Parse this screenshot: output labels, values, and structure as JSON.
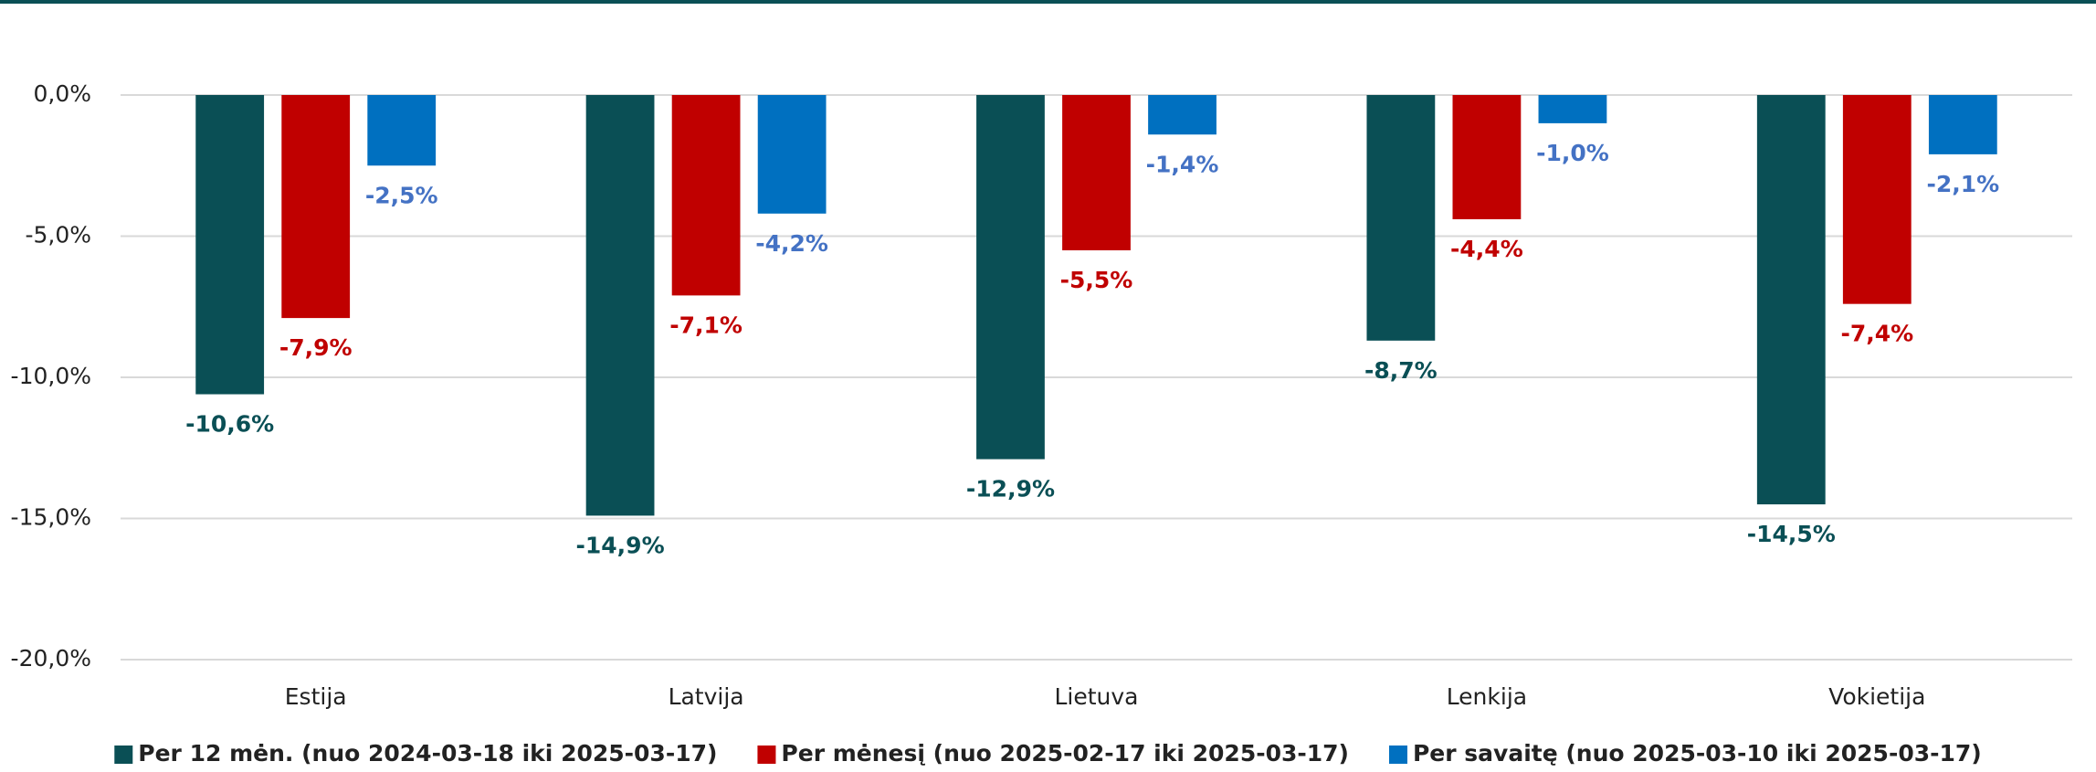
{
  "chart_data": {
    "type": "bar",
    "categories": [
      "Estija",
      "Latvija",
      "Lietuva",
      "Lenkija",
      "Vokietija"
    ],
    "series": [
      {
        "name": "Per 12 mėn. (nuo 2024-03-18 iki 2025-03-17)",
        "color": "#0a4f55",
        "label_color": "#0a4f55",
        "values": [
          -10.6,
          -14.9,
          -12.9,
          -8.7,
          -14.5
        ],
        "value_labels": [
          "-10,6%",
          "-14,9%",
          "-12,9%",
          "-8,7%",
          "-14,5%"
        ]
      },
      {
        "name": "Per mėnesį (nuo 2025-02-17 iki 2025-03-17)",
        "color": "#c00000",
        "label_color": "#c00000",
        "values": [
          -7.9,
          -7.1,
          -5.5,
          -4.4,
          -7.4
        ],
        "value_labels": [
          "-7,9%",
          "-7,1%",
          "-5,5%",
          "-4,4%",
          "-7,4%"
        ]
      },
      {
        "name": "Per savaitę (nuo 2025-03-10 iki 2025-03-17)",
        "color": "#0070c0",
        "label_color": "#4472c4",
        "values": [
          -2.5,
          -4.2,
          -1.4,
          -1.0,
          -2.1
        ],
        "value_labels": [
          "-2,5%",
          "-4,2%",
          "-1,4%",
          "-1,0%",
          "-2,1%"
        ]
      }
    ],
    "ylim": [
      -20,
      0
    ],
    "yticks": [
      {
        "value": 0,
        "label": "0,0%"
      },
      {
        "value": -5,
        "label": "-5,0%"
      },
      {
        "value": -10,
        "label": "-10,0%"
      },
      {
        "value": -15,
        "label": "-15,0%"
      },
      {
        "value": -20,
        "label": "-20,0%"
      }
    ],
    "grid": true,
    "legend": "bottom"
  }
}
